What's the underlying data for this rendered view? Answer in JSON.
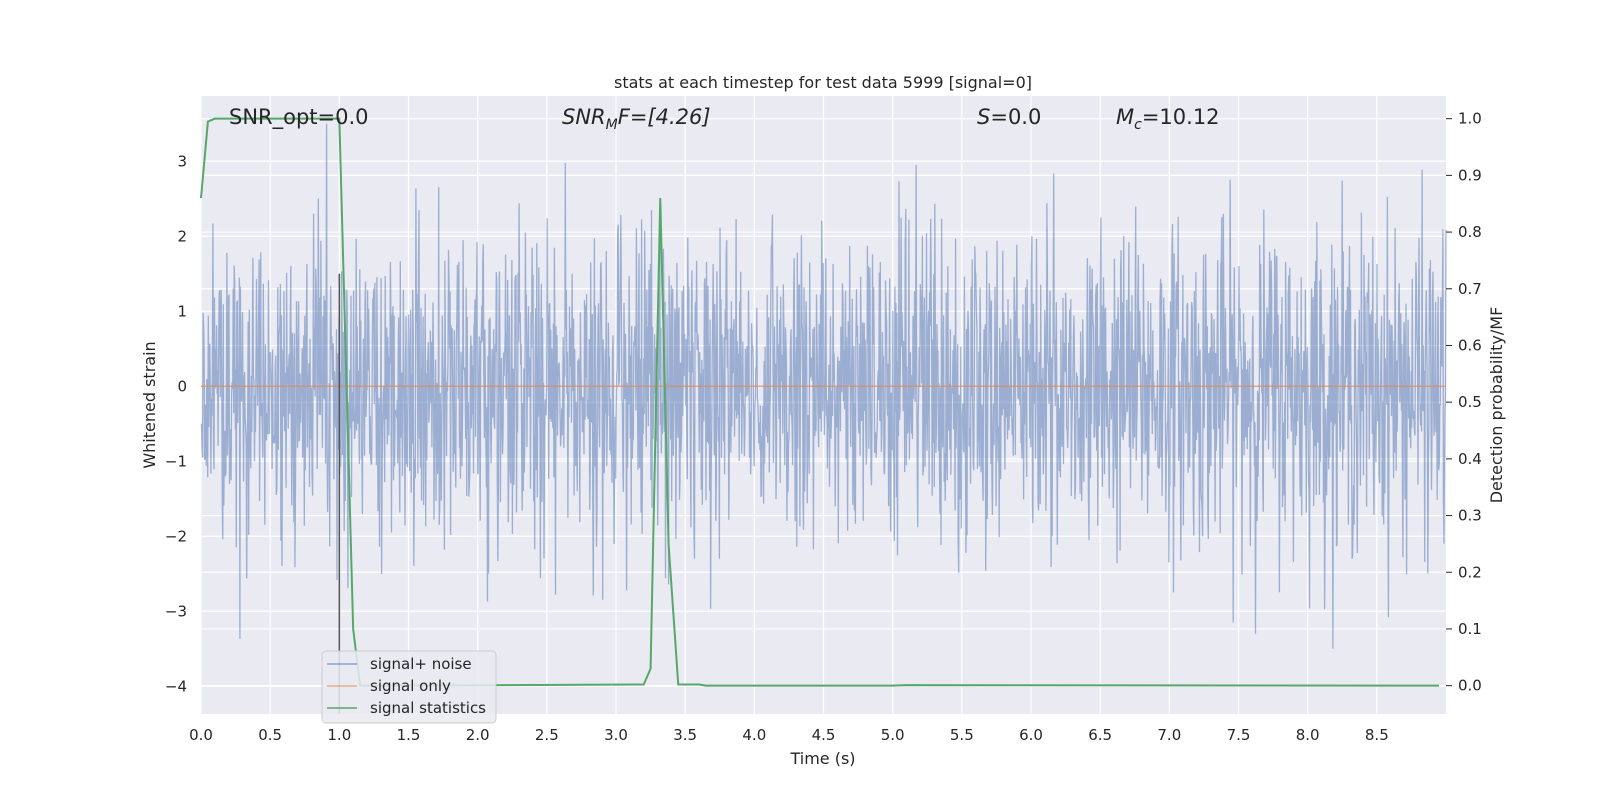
{
  "chart_data": {
    "type": "line",
    "title": "stats at each timestep for test data 5999 [signal=0]",
    "xlabel": "Time (s)",
    "ylabel": "Whitened strain",
    "y2label": "Detection probability/MF",
    "xlim": [
      0,
      9.0
    ],
    "ylim": [
      -4.37,
      3.87
    ],
    "y2lim": [
      -0.05,
      1.04
    ],
    "x_ticks": [
      0.0,
      0.5,
      1.0,
      1.5,
      2.0,
      2.5,
      3.0,
      3.5,
      4.0,
      4.5,
      5.0,
      5.5,
      6.0,
      6.5,
      7.0,
      7.5,
      8.0,
      8.5
    ],
    "x_tick_labels": [
      "0.0",
      "0.5",
      "1.0",
      "1.5",
      "2.0",
      "2.5",
      "3.0",
      "3.5",
      "4.0",
      "4.5",
      "5.0",
      "5.5",
      "6.0",
      "6.5",
      "7.0",
      "7.5",
      "8.0",
      "8.5"
    ],
    "y_ticks": [
      3,
      2,
      1,
      0,
      -1,
      -2,
      -3,
      -4
    ],
    "y_tick_labels": [
      "3",
      "2",
      "1",
      "0",
      "−1",
      "−2",
      "−3",
      "−4"
    ],
    "y2_ticks": [
      1.0,
      0.9,
      0.8,
      0.7,
      0.6,
      0.5,
      0.4,
      0.3,
      0.2,
      0.1,
      0.0
    ],
    "y2_tick_labels": [
      "1.0",
      "0.9",
      "0.8",
      "0.7",
      "0.6",
      "0.5",
      "0.4",
      "0.3",
      "0.2",
      "0.1",
      "0.0"
    ],
    "grid": true,
    "legend_position": "lower-left",
    "annotations": {
      "snr_opt": "SNR_opt=0.0",
      "snr_mf_main": "SNR",
      "snr_mf_sub": "M",
      "snr_mf_tail": "F=[4.26]",
      "s_main": "S",
      "s_tail": "=0.0",
      "mc_main": "M",
      "mc_sub": "c",
      "mc_tail": "=10.12"
    },
    "series": [
      {
        "name": "signal+ noise",
        "color": "#4c72b0",
        "style": "dense noise, roughly within ±3.5",
        "envelope": [
          -3.5,
          3.5
        ]
      },
      {
        "name": "signal only",
        "color": "#dd8452",
        "x": [
          0.0,
          9.0
        ],
        "y": [
          0.0,
          0.0
        ]
      },
      {
        "name": "signal statistics",
        "color": "#55a868",
        "axis": "right",
        "x": [
          0.0,
          0.05,
          0.1,
          0.2,
          1.0,
          1.05,
          1.1,
          1.15,
          1.2,
          3.2,
          3.25,
          3.32,
          3.38,
          3.45,
          3.6,
          3.65,
          5.0,
          5.1,
          8.95
        ],
        "y": [
          0.86,
          0.995,
          1.0,
          1.0,
          1.0,
          0.55,
          0.1,
          0.0,
          0.0,
          0.002,
          0.03,
          0.86,
          0.25,
          0.002,
          0.002,
          0.0,
          0.0,
          0.001,
          0.0
        ]
      }
    ],
    "vertical_line": {
      "x": 1.0,
      "color": "#555555"
    }
  }
}
